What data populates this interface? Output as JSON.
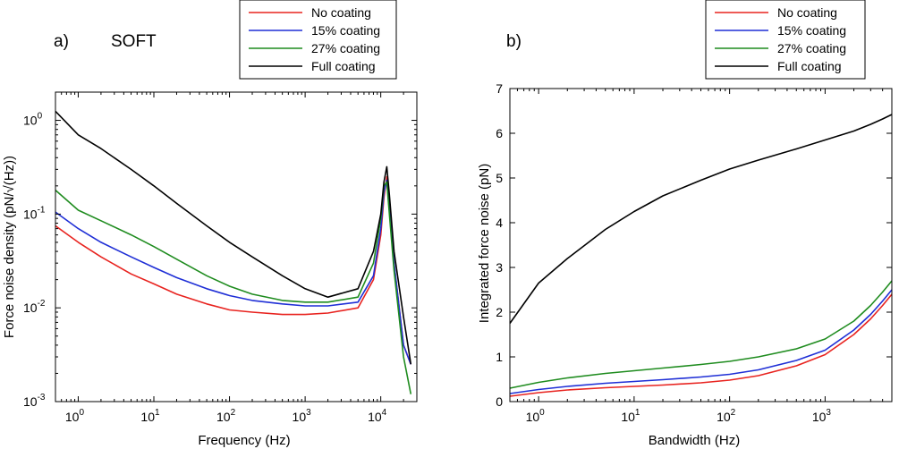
{
  "chart_data": [
    {
      "panel_label": "a)",
      "title": "SOFT",
      "type": "line",
      "xscale": "log",
      "yscale": "log",
      "xlabel": "Frequency (Hz)",
      "ylabel": "Force noise density (pN/√(Hz))",
      "xlim": [
        0.5,
        30000
      ],
      "ylim": [
        0.001,
        2
      ],
      "xticks": [
        1,
        10,
        100,
        1000,
        10000
      ],
      "xtick_labels": [
        [
          "10",
          "0"
        ],
        [
          "10",
          "1"
        ],
        [
          "10",
          "2"
        ],
        [
          "10",
          "3"
        ],
        [
          "10",
          "4"
        ]
      ],
      "yticks": [
        0.001,
        0.01,
        0.1,
        1
      ],
      "ytick_labels": [
        [
          "10",
          "-3"
        ],
        [
          "10",
          "-2"
        ],
        [
          "10",
          "-1"
        ],
        [
          "10",
          "0"
        ]
      ],
      "legend_position": "top-right (outside, above axes)",
      "series": [
        {
          "name": "No coating",
          "color": "#e8231f",
          "x": [
            0.5,
            1,
            2,
            5,
            10,
            20,
            50,
            100,
            200,
            500,
            1000,
            2000,
            5000,
            8000,
            10000,
            11000,
            12000,
            13000,
            15000,
            20000,
            25000
          ],
          "y": [
            0.075,
            0.05,
            0.035,
            0.023,
            0.018,
            0.014,
            0.011,
            0.0095,
            0.009,
            0.0085,
            0.0085,
            0.0088,
            0.01,
            0.02,
            0.06,
            0.15,
            0.25,
            0.12,
            0.03,
            0.004,
            0.0025
          ]
        },
        {
          "name": "15% coating",
          "color": "#1f2fd6",
          "x": [
            0.5,
            1,
            2,
            5,
            10,
            20,
            50,
            100,
            200,
            500,
            1000,
            2000,
            5000,
            8000,
            10000,
            11000,
            12000,
            13000,
            15000,
            20000,
            25000
          ],
          "y": [
            0.105,
            0.07,
            0.05,
            0.035,
            0.027,
            0.021,
            0.016,
            0.0135,
            0.012,
            0.011,
            0.0105,
            0.0105,
            0.0115,
            0.022,
            0.07,
            0.17,
            0.23,
            0.11,
            0.03,
            0.004,
            0.0025
          ]
        },
        {
          "name": "27% coating",
          "color": "#1f8c1f",
          "x": [
            0.5,
            1,
            2,
            5,
            10,
            20,
            50,
            100,
            200,
            500,
            1000,
            2000,
            5000,
            8000,
            10000,
            11000,
            12000,
            13000,
            15000,
            20000,
            25000
          ],
          "y": [
            0.18,
            0.11,
            0.085,
            0.06,
            0.045,
            0.033,
            0.022,
            0.017,
            0.014,
            0.012,
            0.0115,
            0.0115,
            0.013,
            0.03,
            0.09,
            0.2,
            0.22,
            0.1,
            0.025,
            0.003,
            0.0012
          ]
        },
        {
          "name": "Full coating",
          "color": "#000000",
          "x": [
            0.5,
            1,
            2,
            5,
            10,
            20,
            50,
            100,
            200,
            500,
            1000,
            2000,
            5000,
            8000,
            10000,
            11000,
            12000,
            13000,
            15000,
            20000,
            25000
          ],
          "y": [
            1.25,
            0.7,
            0.5,
            0.3,
            0.2,
            0.13,
            0.075,
            0.05,
            0.035,
            0.022,
            0.016,
            0.013,
            0.016,
            0.04,
            0.1,
            0.22,
            0.32,
            0.16,
            0.04,
            0.008,
            0.0025
          ]
        }
      ]
    },
    {
      "panel_label": "b)",
      "title": "",
      "type": "line",
      "xscale": "log",
      "yscale": "linear",
      "xlabel": "Bandwidth (Hz)",
      "ylabel": "Integrated force noise (pN)",
      "xlim": [
        0.5,
        5000
      ],
      "ylim": [
        0,
        7
      ],
      "xticks": [
        1,
        10,
        100,
        1000
      ],
      "xtick_labels": [
        [
          "10",
          "0"
        ],
        [
          "10",
          "1"
        ],
        [
          "10",
          "2"
        ],
        [
          "10",
          "3"
        ]
      ],
      "yticks": [
        0,
        1,
        2,
        3,
        4,
        5,
        6,
        7
      ],
      "ytick_labels": [
        "0",
        "1",
        "2",
        "3",
        "4",
        "5",
        "6",
        "7"
      ],
      "legend_position": "top-right (outside, above axes)",
      "series": [
        {
          "name": "No coating",
          "color": "#e8231f",
          "x": [
            0.5,
            1,
            2,
            5,
            10,
            20,
            50,
            100,
            200,
            500,
            1000,
            2000,
            3000,
            4000,
            5000
          ],
          "y": [
            0.12,
            0.2,
            0.26,
            0.31,
            0.34,
            0.37,
            0.42,
            0.48,
            0.58,
            0.8,
            1.05,
            1.5,
            1.85,
            2.15,
            2.4
          ]
        },
        {
          "name": "15% coating",
          "color": "#1f2fd6",
          "x": [
            0.5,
            1,
            2,
            5,
            10,
            20,
            50,
            100,
            200,
            500,
            1000,
            2000,
            3000,
            4000,
            5000
          ],
          "y": [
            0.18,
            0.27,
            0.34,
            0.41,
            0.45,
            0.49,
            0.55,
            0.61,
            0.71,
            0.92,
            1.15,
            1.6,
            1.95,
            2.25,
            2.5
          ]
        },
        {
          "name": "27% coating",
          "color": "#1f8c1f",
          "x": [
            0.5,
            1,
            2,
            5,
            10,
            20,
            50,
            100,
            200,
            500,
            1000,
            2000,
            3000,
            4000,
            5000
          ],
          "y": [
            0.3,
            0.43,
            0.53,
            0.63,
            0.69,
            0.75,
            0.83,
            0.9,
            1.0,
            1.18,
            1.4,
            1.8,
            2.15,
            2.45,
            2.7
          ]
        },
        {
          "name": "Full coating",
          "color": "#000000",
          "x": [
            0.5,
            1,
            2,
            5,
            10,
            20,
            50,
            100,
            200,
            500,
            1000,
            2000,
            3000,
            4000,
            5000
          ],
          "y": [
            1.75,
            2.65,
            3.2,
            3.85,
            4.25,
            4.6,
            4.95,
            5.2,
            5.4,
            5.65,
            5.85,
            6.05,
            6.2,
            6.32,
            6.42
          ]
        }
      ]
    }
  ]
}
